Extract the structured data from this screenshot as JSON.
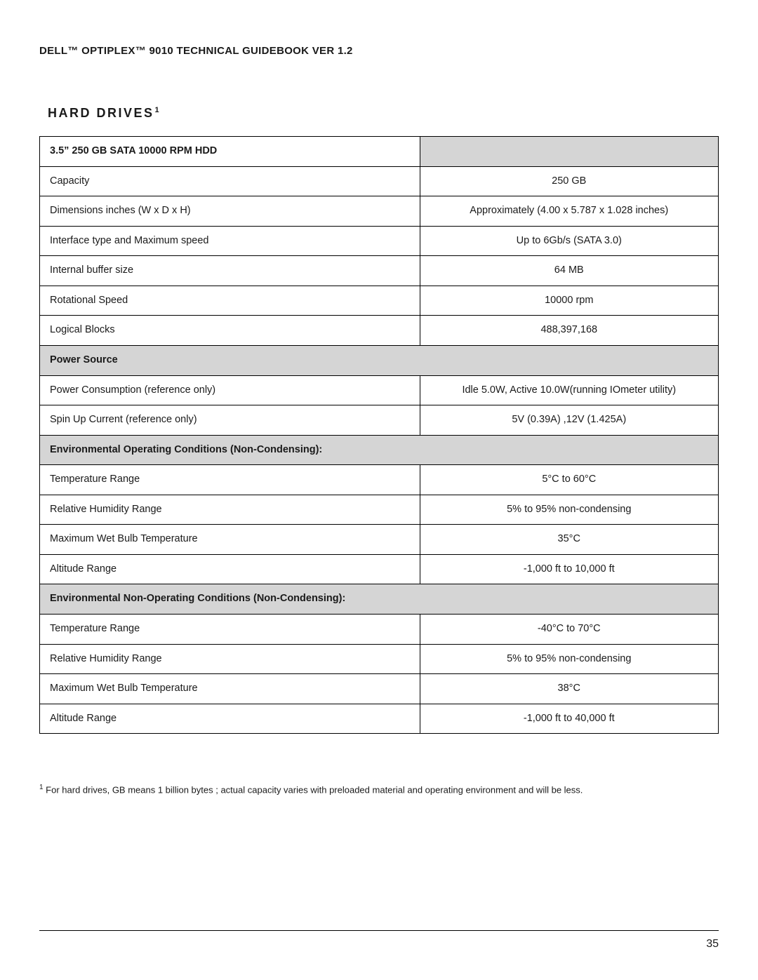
{
  "colors": {
    "background": "#ffffff",
    "text": "#1a1a1a",
    "section_head_bg": "#d5d5d5",
    "border": "#000000",
    "footer_rule": "#000000"
  },
  "typography": {
    "body_font": "Segoe UI, Helvetica Neue, Arial, sans-serif",
    "doc_header_size_pt": 11,
    "section_title_size_pt": 13,
    "cell_font_size_pt": 11,
    "footnote_size_pt": 10
  },
  "header": {
    "title": "DELL™ OPTIPLEX™ 9010 TECHNICAL GUIDEBOOK VER 1.2"
  },
  "section": {
    "title": "HARD DRIVES",
    "superscript": "1"
  },
  "table": {
    "layout": {
      "col_widths_pct": [
        56,
        44
      ],
      "label_align": "left",
      "value_align": "center"
    },
    "rows": [
      {
        "type": "title",
        "label": "3.5” 250 GB SATA 10000 RPM HDD"
      },
      {
        "type": "data",
        "label": "Capacity",
        "value": "250 GB"
      },
      {
        "type": "data",
        "label": "Dimensions inches (W x D x H)",
        "value": "Approximately (4.00 x 5.787 x 1.028 inches)"
      },
      {
        "type": "data",
        "label": "Interface type and Maximum speed",
        "value": "Up to 6Gb/s (SATA 3.0)"
      },
      {
        "type": "data",
        "label": "Internal buffer size",
        "value": "64  MB"
      },
      {
        "type": "data",
        "label": "Rotational Speed",
        "value": "10000 rpm"
      },
      {
        "type": "data",
        "label": "Logical Blocks",
        "value": "488,397,168"
      },
      {
        "type": "section",
        "label": "Power Source"
      },
      {
        "type": "data",
        "label": "Power Consumption (reference only)",
        "value": "Idle 5.0W, Active 10.0W(running IOmeter utility)"
      },
      {
        "type": "data",
        "label": "Spin Up Current (reference only)",
        "value": "5V (0.39A) ,12V (1.425A)"
      },
      {
        "type": "section",
        "label": "Environmental Operating Conditions (Non-Condensing):"
      },
      {
        "type": "data",
        "label": "Temperature Range",
        "value": "5°C to 60°C"
      },
      {
        "type": "data",
        "label": "Relative Humidity Range",
        "value": "5% to 95% non-condensing"
      },
      {
        "type": "data",
        "label": "Maximum Wet Bulb Temperature",
        "value": "35°C"
      },
      {
        "type": "data",
        "label": "Altitude Range",
        "value": "-1,000 ft to 10,000 ft"
      },
      {
        "type": "section",
        "label": "Environmental Non-Operating Conditions (Non-Condensing):"
      },
      {
        "type": "data",
        "label": "Temperature Range",
        "value": "-40°C to 70°C"
      },
      {
        "type": "data",
        "label": "Relative Humidity Range",
        "value": "5% to 95% non-condensing"
      },
      {
        "type": "data",
        "label": "Maximum Wet Bulb Temperature",
        "value": "38°C"
      },
      {
        "type": "data",
        "label": "Altitude Range",
        "value": "-1,000 ft to 40,000 ft"
      }
    ]
  },
  "footnote": {
    "superscript": "1",
    "text": " For hard drives, GB means 1 billion bytes ; actual capacity varies with preloaded material and operating environment and will be less."
  },
  "page_number": "35"
}
